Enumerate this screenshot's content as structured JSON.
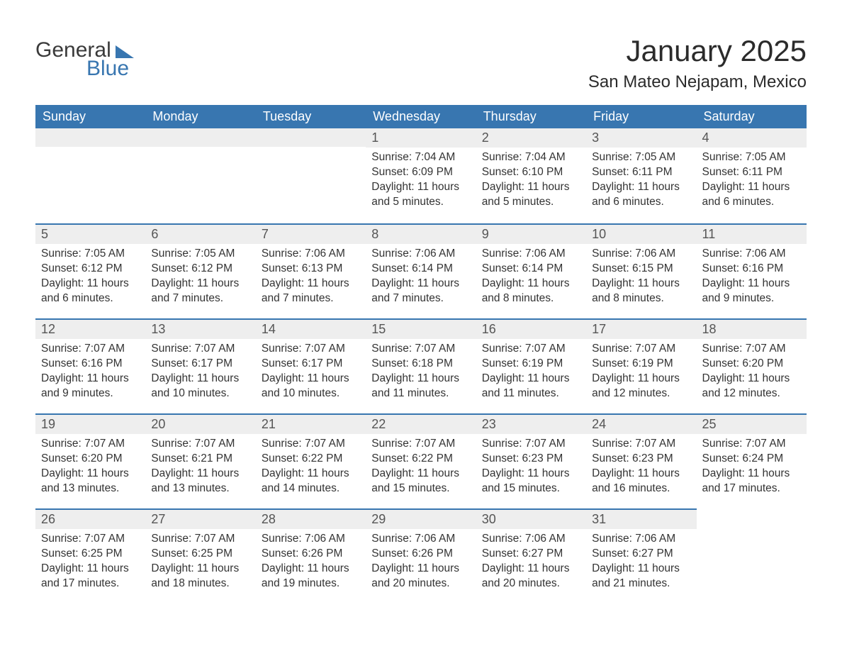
{
  "logo": {
    "text1": "General",
    "text2": "Blue"
  },
  "title": "January 2025",
  "location": "San Mateo Nejapam, Mexico",
  "colors": {
    "header_bg": "#3876b0",
    "header_text": "#ffffff",
    "daynum_bg": "#eeeeee",
    "daynum_text": "#555555",
    "body_text": "#333333",
    "rule": "#3876b0"
  },
  "weekdays": [
    "Sunday",
    "Monday",
    "Tuesday",
    "Wednesday",
    "Thursday",
    "Friday",
    "Saturday"
  ],
  "layout": {
    "first_weekday_index": 3,
    "days_in_month": 31
  },
  "days": {
    "1": {
      "sunrise": "7:04 AM",
      "sunset": "6:09 PM",
      "daylight": "11 hours and 5 minutes."
    },
    "2": {
      "sunrise": "7:04 AM",
      "sunset": "6:10 PM",
      "daylight": "11 hours and 5 minutes."
    },
    "3": {
      "sunrise": "7:05 AM",
      "sunset": "6:11 PM",
      "daylight": "11 hours and 6 minutes."
    },
    "4": {
      "sunrise": "7:05 AM",
      "sunset": "6:11 PM",
      "daylight": "11 hours and 6 minutes."
    },
    "5": {
      "sunrise": "7:05 AM",
      "sunset": "6:12 PM",
      "daylight": "11 hours and 6 minutes."
    },
    "6": {
      "sunrise": "7:05 AM",
      "sunset": "6:12 PM",
      "daylight": "11 hours and 7 minutes."
    },
    "7": {
      "sunrise": "7:06 AM",
      "sunset": "6:13 PM",
      "daylight": "11 hours and 7 minutes."
    },
    "8": {
      "sunrise": "7:06 AM",
      "sunset": "6:14 PM",
      "daylight": "11 hours and 7 minutes."
    },
    "9": {
      "sunrise": "7:06 AM",
      "sunset": "6:14 PM",
      "daylight": "11 hours and 8 minutes."
    },
    "10": {
      "sunrise": "7:06 AM",
      "sunset": "6:15 PM",
      "daylight": "11 hours and 8 minutes."
    },
    "11": {
      "sunrise": "7:06 AM",
      "sunset": "6:16 PM",
      "daylight": "11 hours and 9 minutes."
    },
    "12": {
      "sunrise": "7:07 AM",
      "sunset": "6:16 PM",
      "daylight": "11 hours and 9 minutes."
    },
    "13": {
      "sunrise": "7:07 AM",
      "sunset": "6:17 PM",
      "daylight": "11 hours and 10 minutes."
    },
    "14": {
      "sunrise": "7:07 AM",
      "sunset": "6:17 PM",
      "daylight": "11 hours and 10 minutes."
    },
    "15": {
      "sunrise": "7:07 AM",
      "sunset": "6:18 PM",
      "daylight": "11 hours and 11 minutes."
    },
    "16": {
      "sunrise": "7:07 AM",
      "sunset": "6:19 PM",
      "daylight": "11 hours and 11 minutes."
    },
    "17": {
      "sunrise": "7:07 AM",
      "sunset": "6:19 PM",
      "daylight": "11 hours and 12 minutes."
    },
    "18": {
      "sunrise": "7:07 AM",
      "sunset": "6:20 PM",
      "daylight": "11 hours and 12 minutes."
    },
    "19": {
      "sunrise": "7:07 AM",
      "sunset": "6:20 PM",
      "daylight": "11 hours and 13 minutes."
    },
    "20": {
      "sunrise": "7:07 AM",
      "sunset": "6:21 PM",
      "daylight": "11 hours and 13 minutes."
    },
    "21": {
      "sunrise": "7:07 AM",
      "sunset": "6:22 PM",
      "daylight": "11 hours and 14 minutes."
    },
    "22": {
      "sunrise": "7:07 AM",
      "sunset": "6:22 PM",
      "daylight": "11 hours and 15 minutes."
    },
    "23": {
      "sunrise": "7:07 AM",
      "sunset": "6:23 PM",
      "daylight": "11 hours and 15 minutes."
    },
    "24": {
      "sunrise": "7:07 AM",
      "sunset": "6:23 PM",
      "daylight": "11 hours and 16 minutes."
    },
    "25": {
      "sunrise": "7:07 AM",
      "sunset": "6:24 PM",
      "daylight": "11 hours and 17 minutes."
    },
    "26": {
      "sunrise": "7:07 AM",
      "sunset": "6:25 PM",
      "daylight": "11 hours and 17 minutes."
    },
    "27": {
      "sunrise": "7:07 AM",
      "sunset": "6:25 PM",
      "daylight": "11 hours and 18 minutes."
    },
    "28": {
      "sunrise": "7:06 AM",
      "sunset": "6:26 PM",
      "daylight": "11 hours and 19 minutes."
    },
    "29": {
      "sunrise": "7:06 AM",
      "sunset": "6:26 PM",
      "daylight": "11 hours and 20 minutes."
    },
    "30": {
      "sunrise": "7:06 AM",
      "sunset": "6:27 PM",
      "daylight": "11 hours and 20 minutes."
    },
    "31": {
      "sunrise": "7:06 AM",
      "sunset": "6:27 PM",
      "daylight": "11 hours and 21 minutes."
    }
  },
  "labels": {
    "sunrise": "Sunrise: ",
    "sunset": "Sunset: ",
    "daylight": "Daylight: "
  }
}
